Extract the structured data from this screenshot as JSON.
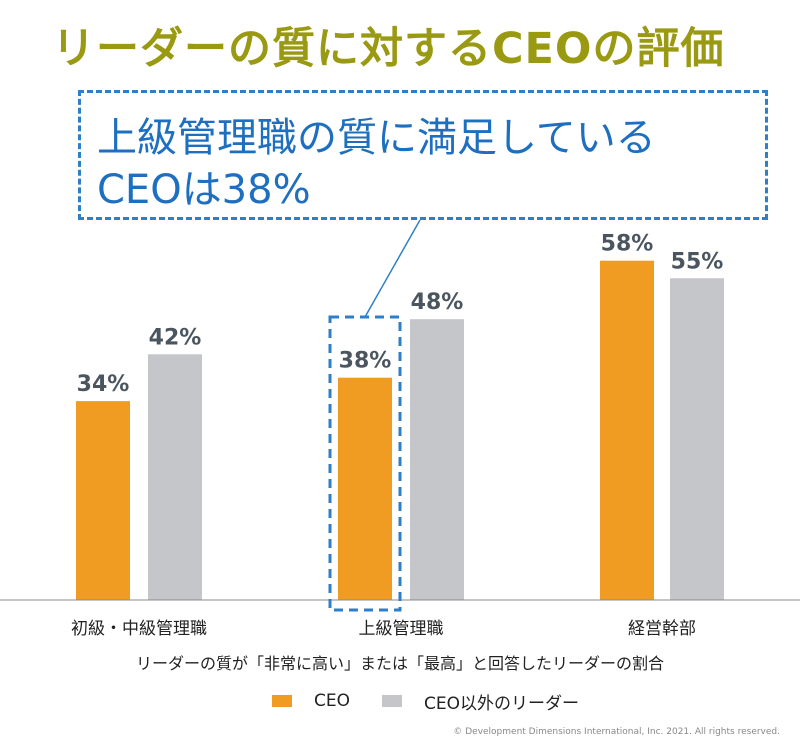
{
  "title": "リーダーの質に対するCEOの評価",
  "callout": {
    "line1": "上級管理職の質に満足している",
    "line2": "CEOは38%"
  },
  "colors": {
    "ceo": "#f09c22",
    "other": "#c4c6ca",
    "title": "#9a9a12",
    "accent": "#2f7fc8",
    "label": "#4a5560"
  },
  "chart_data": {
    "type": "bar",
    "categories": [
      "初級・中級管理職",
      "上級管理職",
      "経営幹部"
    ],
    "series": [
      {
        "name": "CEO",
        "values": [
          34,
          38,
          58
        ]
      },
      {
        "name": "CEO以外のリーダー",
        "values": [
          42,
          48,
          55
        ]
      }
    ],
    "data_labels": [
      [
        "34%",
        "38%",
        "58%"
      ],
      [
        "42%",
        "48%",
        "55%"
      ]
    ],
    "ylim": [
      0,
      100
    ],
    "legend": "bottom",
    "grid": false
  },
  "note": "リーダーの質が「非常に高い」または「最高」と回答したリーダーの割合",
  "legend": {
    "ceo": "CEO",
    "other": "CEO以外のリーダー"
  },
  "copyright": "© Development Dimensions International, Inc. 2021. All rights reserved."
}
